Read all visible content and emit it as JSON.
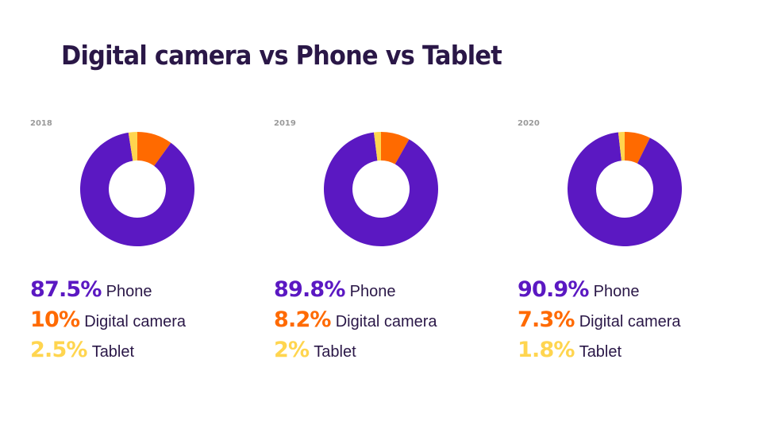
{
  "title": "Digital camera vs Phone vs Tablet",
  "colors": {
    "Phone": "#5b18c2",
    "Digital camera": "#ff6a00",
    "Tablet": "#ffd54f"
  },
  "chart_data": [
    {
      "type": "pie",
      "title": "2018",
      "series": [
        {
          "name": "Phone",
          "value": 87.5,
          "label": "87.5%"
        },
        {
          "name": "Digital camera",
          "value": 10,
          "label": "10%"
        },
        {
          "name": "Tablet",
          "value": 2.5,
          "label": "2.5%"
        }
      ]
    },
    {
      "type": "pie",
      "title": "2019",
      "series": [
        {
          "name": "Phone",
          "value": 89.8,
          "label": "89.8%"
        },
        {
          "name": "Digital camera",
          "value": 8.2,
          "label": "8.2%"
        },
        {
          "name": "Tablet",
          "value": 2,
          "label": "2%"
        }
      ]
    },
    {
      "type": "pie",
      "title": "2020",
      "series": [
        {
          "name": "Phone",
          "value": 90.9,
          "label": "90.9%"
        },
        {
          "name": "Digital camera",
          "value": 7.3,
          "label": "7.3%"
        },
        {
          "name": "Tablet",
          "value": 1.8,
          "label": "1.8%"
        }
      ]
    }
  ]
}
